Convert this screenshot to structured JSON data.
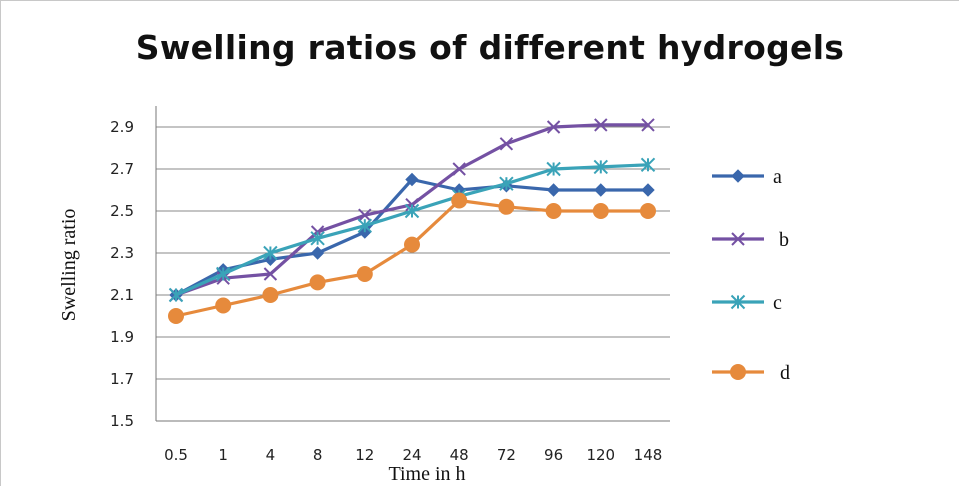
{
  "chart_data": {
    "type": "line",
    "title": "Swelling ratios of different hydrogels",
    "xlabel": "Time in h",
    "ylabel": "Swelling ratio",
    "categories": [
      "0.5",
      "1",
      "4",
      "8",
      "12",
      "24",
      "48",
      "72",
      "96",
      "120",
      "148"
    ],
    "ylim": [
      1.5,
      3.0
    ],
    "yticks": [
      "1.5",
      "1.7",
      "1.9",
      "2.1",
      "2.3",
      "2.5",
      "2.7",
      "2.9"
    ],
    "grid": true,
    "legend_position": "right",
    "series": [
      {
        "name": "a",
        "color": "#3a67ac",
        "marker": "diamond",
        "values": [
          2.1,
          2.22,
          2.27,
          2.3,
          2.4,
          2.65,
          2.6,
          2.62,
          2.6,
          2.6,
          2.6
        ]
      },
      {
        "name": "b",
        "color": "#7451a3",
        "marker": "x",
        "values": [
          2.1,
          2.18,
          2.2,
          2.4,
          2.48,
          2.53,
          2.7,
          2.82,
          2.9,
          2.91,
          2.91
        ]
      },
      {
        "name": "c",
        "color": "#3aa3b8",
        "marker": "asterisk",
        "values": [
          2.1,
          2.2,
          2.3,
          2.37,
          2.43,
          2.5,
          2.57,
          2.63,
          2.7,
          2.71,
          2.72
        ]
      },
      {
        "name": "d",
        "color": "#e68a3c",
        "marker": "circle",
        "values": [
          2.0,
          2.05,
          2.1,
          2.16,
          2.2,
          2.34,
          2.55,
          2.52,
          2.5,
          2.5,
          2.5
        ]
      }
    ]
  }
}
